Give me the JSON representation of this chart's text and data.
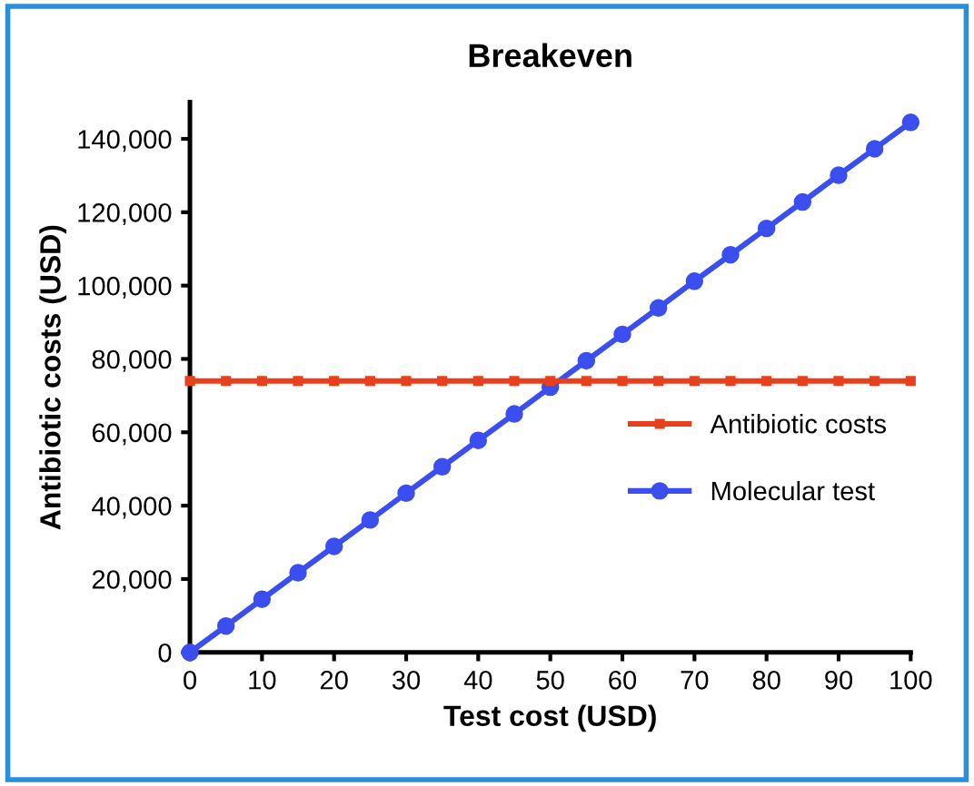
{
  "chart_data": {
    "type": "line",
    "title": "Breakeven",
    "xlabel": "Test cost (USD)",
    "ylabel": "Antibiotic costs (USD)",
    "x": [
      0,
      5,
      10,
      15,
      20,
      25,
      30,
      35,
      40,
      45,
      50,
      55,
      60,
      65,
      70,
      75,
      80,
      85,
      90,
      95,
      100
    ],
    "series": [
      {
        "name": "Antibiotic costs",
        "color": "#e8401c",
        "marker": "square",
        "values": [
          74000,
          74000,
          74000,
          74000,
          74000,
          74000,
          74000,
          74000,
          74000,
          74000,
          74000,
          74000,
          74000,
          74000,
          74000,
          74000,
          74000,
          74000,
          74000,
          74000,
          74000
        ]
      },
      {
        "name": "Molecular test",
        "color": "#3b4ef0",
        "marker": "circle",
        "values": [
          0,
          7200,
          14500,
          21700,
          28900,
          36100,
          43400,
          50600,
          57800,
          65000,
          72300,
          79500,
          86700,
          93900,
          101200,
          108400,
          115600,
          122800,
          130100,
          137300,
          144500
        ]
      }
    ],
    "xlim": [
      0,
      100
    ],
    "xticks": [
      0,
      10,
      20,
      30,
      40,
      50,
      60,
      70,
      80,
      90,
      100
    ],
    "ylim": [
      0,
      150000
    ],
    "yticks": [
      {
        "value": 0,
        "label": "0"
      },
      {
        "value": 20000,
        "label": "20,000"
      },
      {
        "value": 40000,
        "label": "40,000"
      },
      {
        "value": 60000,
        "label": "60,000"
      },
      {
        "value": 80000,
        "label": "80,000"
      },
      {
        "value": 100000,
        "label": "100,000"
      },
      {
        "value": 120000,
        "label": "120,000"
      },
      {
        "value": 140000,
        "label": "140,000"
      }
    ],
    "grid": false,
    "legend": "right",
    "line_style": "solid"
  }
}
